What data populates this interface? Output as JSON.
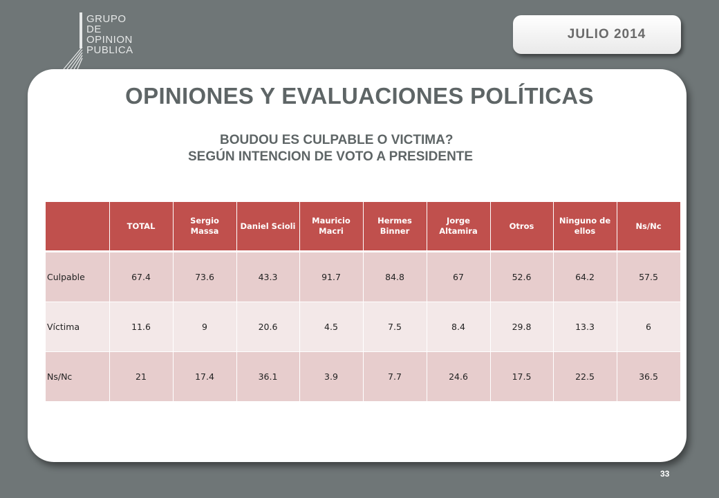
{
  "logo": {
    "lines": [
      "GRUPO",
      "DE",
      "OPINION",
      "PUBLICA"
    ]
  },
  "date_badge": "JULIO  2014",
  "title": "OPINIONES Y EVALUACIONES POLÍTICAS",
  "subtitle": {
    "line1": "BOUDOU ES CULPABLE O VICTIMA?",
    "line2": "SEGÚN INTENCION DE VOTO A PRESIDENTE"
  },
  "table": {
    "headers": [
      "",
      "TOTAL",
      "Sergio Massa",
      "Daniel Scioli",
      "Mauricio Macri",
      "Hermes Binner",
      "Jorge Altamira",
      "Otros",
      "Ninguno de ellos",
      "Ns/Nc"
    ],
    "rows": [
      [
        "Culpable",
        "67.4",
        "73.6",
        "43.3",
        "91.7",
        "84.8",
        "67",
        "52.6",
        "64.2",
        "57.5"
      ],
      [
        "Víctima",
        "11.6",
        "9",
        "20.6",
        "4.5",
        "7.5",
        "8.4",
        "29.8",
        "13.3",
        "6"
      ],
      [
        "Ns/Nc",
        "21",
        "17.4",
        "36.1",
        "3.9",
        "7.7",
        "24.6",
        "17.5",
        "22.5",
        "36.5"
      ]
    ]
  },
  "page_number": "33",
  "colors": {
    "background": "#6f7677",
    "header_red": "#c0504d",
    "row_pink": "#e7cdcd",
    "row_light": "#f3e8e8",
    "title_gray": "#5e6566"
  }
}
